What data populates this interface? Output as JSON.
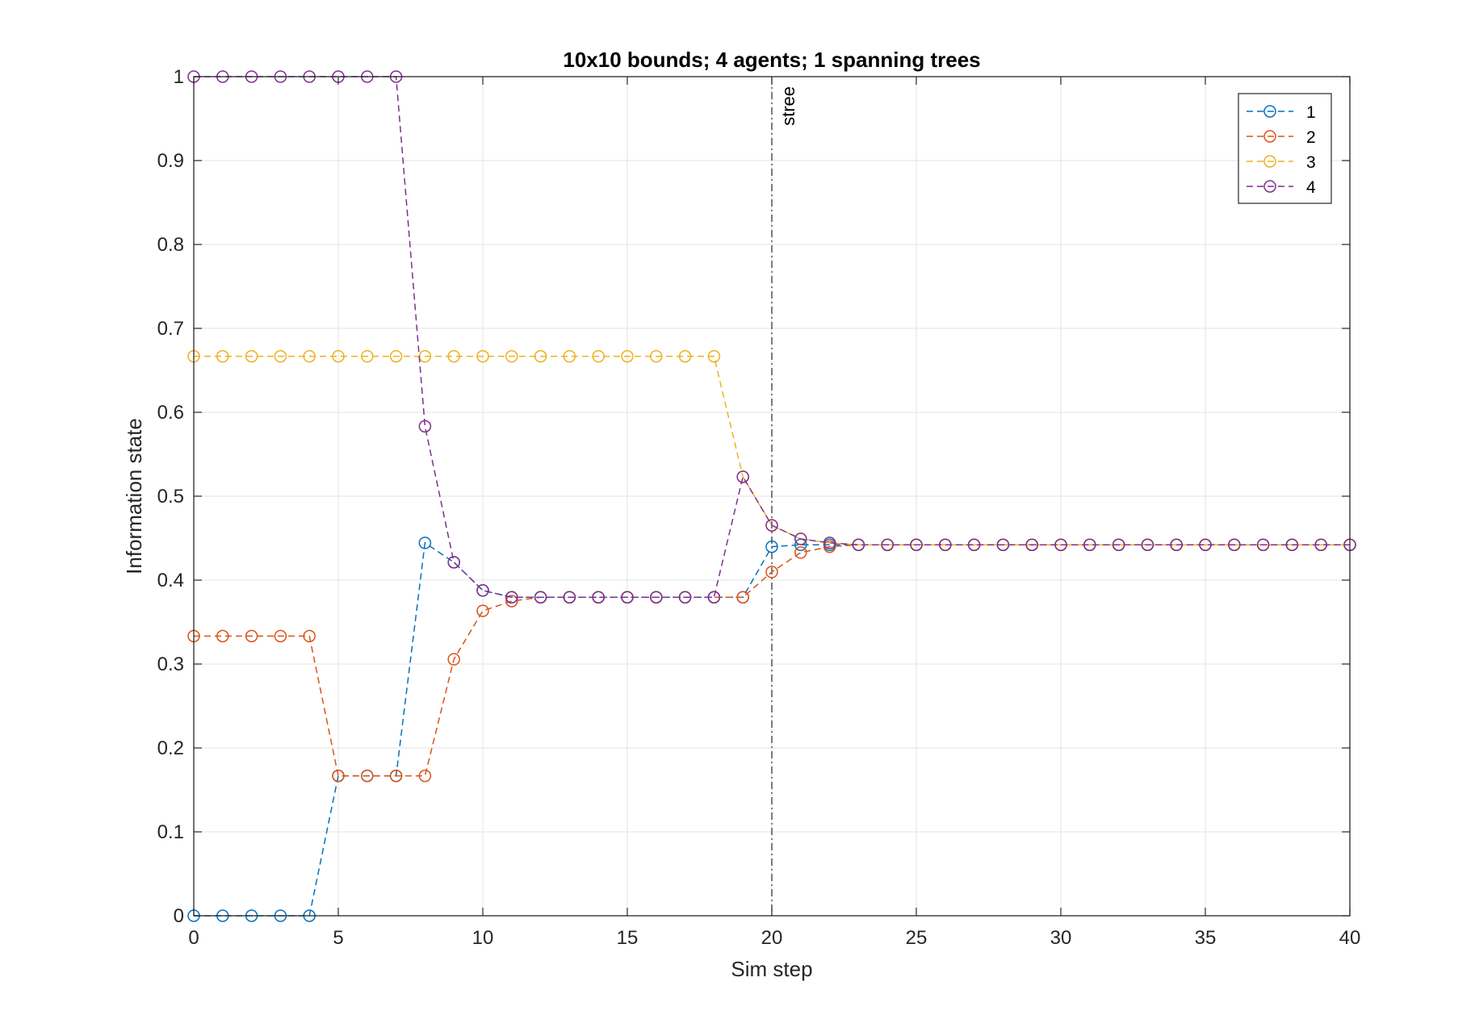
{
  "chart_data": {
    "type": "line",
    "title": "10x10 bounds; 4 agents; 1 spanning trees",
    "xlabel": "Sim step",
    "ylabel": "Information state",
    "xlim": [
      0,
      40
    ],
    "ylim": [
      0,
      1
    ],
    "xticks": [
      "0",
      "5",
      "10",
      "15",
      "20",
      "25",
      "30",
      "35",
      "40"
    ],
    "yticks": [
      "0",
      "0.1",
      "0.2",
      "0.3",
      "0.4",
      "0.5",
      "0.6",
      "0.7",
      "0.8",
      "0.9",
      "1"
    ],
    "grid": true,
    "legend_position": "top-right",
    "line_style": "dashed",
    "marker": "circle",
    "x": [
      0,
      1,
      2,
      3,
      4,
      5,
      6,
      7,
      8,
      9,
      10,
      11,
      12,
      13,
      14,
      15,
      16,
      17,
      18,
      19,
      20,
      21,
      22,
      23,
      24,
      25,
      26,
      27,
      28,
      29,
      30,
      31,
      32,
      33,
      34,
      35,
      36,
      37,
      38,
      39,
      40
    ],
    "series": [
      {
        "name": "1",
        "color": "#0072BD",
        "values": [
          0,
          0,
          0,
          0,
          0,
          0.1667,
          0.1667,
          0.1667,
          0.4444,
          0.4213,
          0.3877,
          0.3796,
          0.3796,
          0.3796,
          0.3796,
          0.3796,
          0.3796,
          0.3796,
          0.3796,
          0.3796,
          0.4398,
          0.4421,
          0.4421,
          0.4421,
          0.4421,
          0.4421,
          0.4421,
          0.4421,
          0.4421,
          0.4421,
          0.4421,
          0.4421,
          0.4421,
          0.4421,
          0.4421,
          0.4421,
          0.4421,
          0.4421,
          0.4421,
          0.4421,
          0.4421
        ]
      },
      {
        "name": "2",
        "color": "#D95319",
        "values": [
          0.3333,
          0.3333,
          0.3333,
          0.3333,
          0.3333,
          0.1667,
          0.1667,
          0.1667,
          0.1667,
          0.3056,
          0.3634,
          0.375,
          0.3796,
          0.3796,
          0.3796,
          0.3796,
          0.3796,
          0.3796,
          0.3796,
          0.3796,
          0.4097,
          0.4329,
          0.4398,
          0.4421,
          0.4421,
          0.4421,
          0.4421,
          0.4421,
          0.4421,
          0.4421,
          0.4421,
          0.4421,
          0.4421,
          0.4421,
          0.4421,
          0.4421,
          0.4421,
          0.4421,
          0.4421,
          0.4421,
          0.4421
        ]
      },
      {
        "name": "3",
        "color": "#EDB120",
        "values": [
          0.6667,
          0.6667,
          0.6667,
          0.6667,
          0.6667,
          0.6667,
          0.6667,
          0.6667,
          0.6667,
          0.6667,
          0.6667,
          0.6667,
          0.6667,
          0.6667,
          0.6667,
          0.6667,
          0.6667,
          0.6667,
          0.6667,
          0.5231,
          0.4653,
          0.4491,
          0.4444,
          0.4421,
          0.4421,
          0.4421,
          0.4421,
          0.4421,
          0.4421,
          0.4421,
          0.4421,
          0.4421,
          0.4421,
          0.4421,
          0.4421,
          0.4421,
          0.4421,
          0.4421,
          0.4421,
          0.4421,
          0.4421
        ]
      },
      {
        "name": "4",
        "color": "#7E2F8E",
        "values": [
          1,
          1,
          1,
          1,
          1,
          1,
          1,
          1,
          0.5833,
          0.4213,
          0.3877,
          0.3796,
          0.3796,
          0.3796,
          0.3796,
          0.3796,
          0.3796,
          0.3796,
          0.3796,
          0.5231,
          0.4653,
          0.4491,
          0.4444,
          0.4421,
          0.4421,
          0.4421,
          0.4421,
          0.4421,
          0.4421,
          0.4421,
          0.4421,
          0.4421,
          0.4421,
          0.4421,
          0.4421,
          0.4421,
          0.4421,
          0.4421,
          0.4421,
          0.4421,
          0.4421
        ]
      }
    ],
    "annotations": [
      {
        "text": "stree",
        "x": 20,
        "style": "vertical dash-dot line"
      }
    ]
  }
}
